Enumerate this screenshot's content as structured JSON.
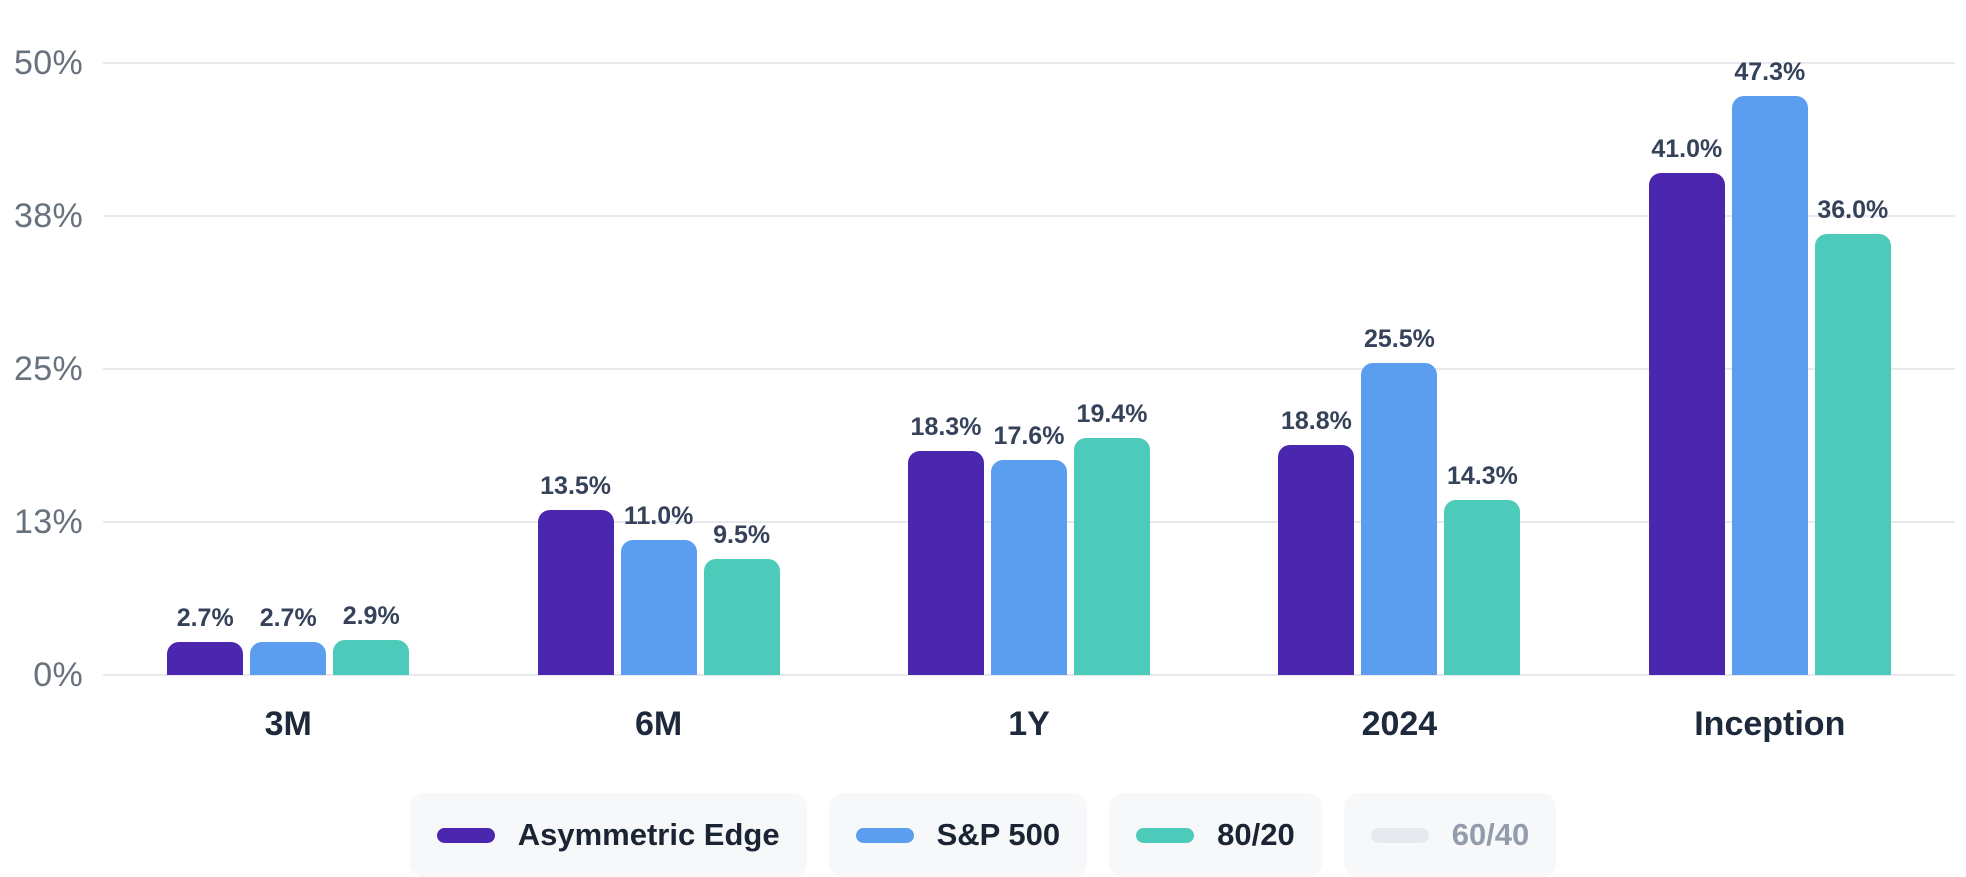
{
  "chart_data": {
    "type": "bar",
    "categories": [
      "3M",
      "6M",
      "1Y",
      "2024",
      "Inception"
    ],
    "series": [
      {
        "name": "Asymmetric Edge",
        "color": "#4b26af",
        "values": [
          2.7,
          13.5,
          18.3,
          18.8,
          41.0
        ],
        "labels": [
          "2.7%",
          "13.5%",
          "18.3%",
          "18.8%",
          "41.0%"
        ]
      },
      {
        "name": "S&P 500",
        "color": "#5b9ef0",
        "values": [
          2.7,
          11.0,
          17.6,
          25.5,
          47.3
        ],
        "labels": [
          "2.7%",
          "11.0%",
          "17.6%",
          "25.5%",
          "47.3%"
        ]
      },
      {
        "name": "80/20",
        "color": "#4ccbba",
        "values": [
          2.9,
          9.5,
          19.4,
          14.3,
          36.0
        ],
        "labels": [
          "2.9%",
          "9.5%",
          "19.4%",
          "14.3%",
          "36.0%"
        ]
      }
    ],
    "y_axis": {
      "tick_labels": [
        "50%",
        "38%",
        "25%",
        "13%",
        "0%"
      ],
      "tick_values": [
        50,
        37.5,
        25,
        12.5,
        0
      ],
      "min": 0,
      "max": 50
    },
    "grid": true,
    "legend_position": "bottom",
    "legend": [
      {
        "name": "Asymmetric Edge",
        "color": "#4b26af",
        "active": true
      },
      {
        "name": "S&P 500",
        "color": "#5b9ef0",
        "active": true
      },
      {
        "name": "80/20",
        "color": "#4ccbba",
        "active": true
      },
      {
        "name": "60/40",
        "color": "#e6e9ee",
        "active": false
      }
    ],
    "colors": {
      "gridline": "#e7e9ec",
      "y_tick_text": "#68727f",
      "x_label_text": "#1e2a3c",
      "bar_value_text": "#36425a",
      "legend_active_text": "#1b2433",
      "legend_inactive_text": "#939cab",
      "legend_pill_bg": "#f7f8fa"
    }
  }
}
